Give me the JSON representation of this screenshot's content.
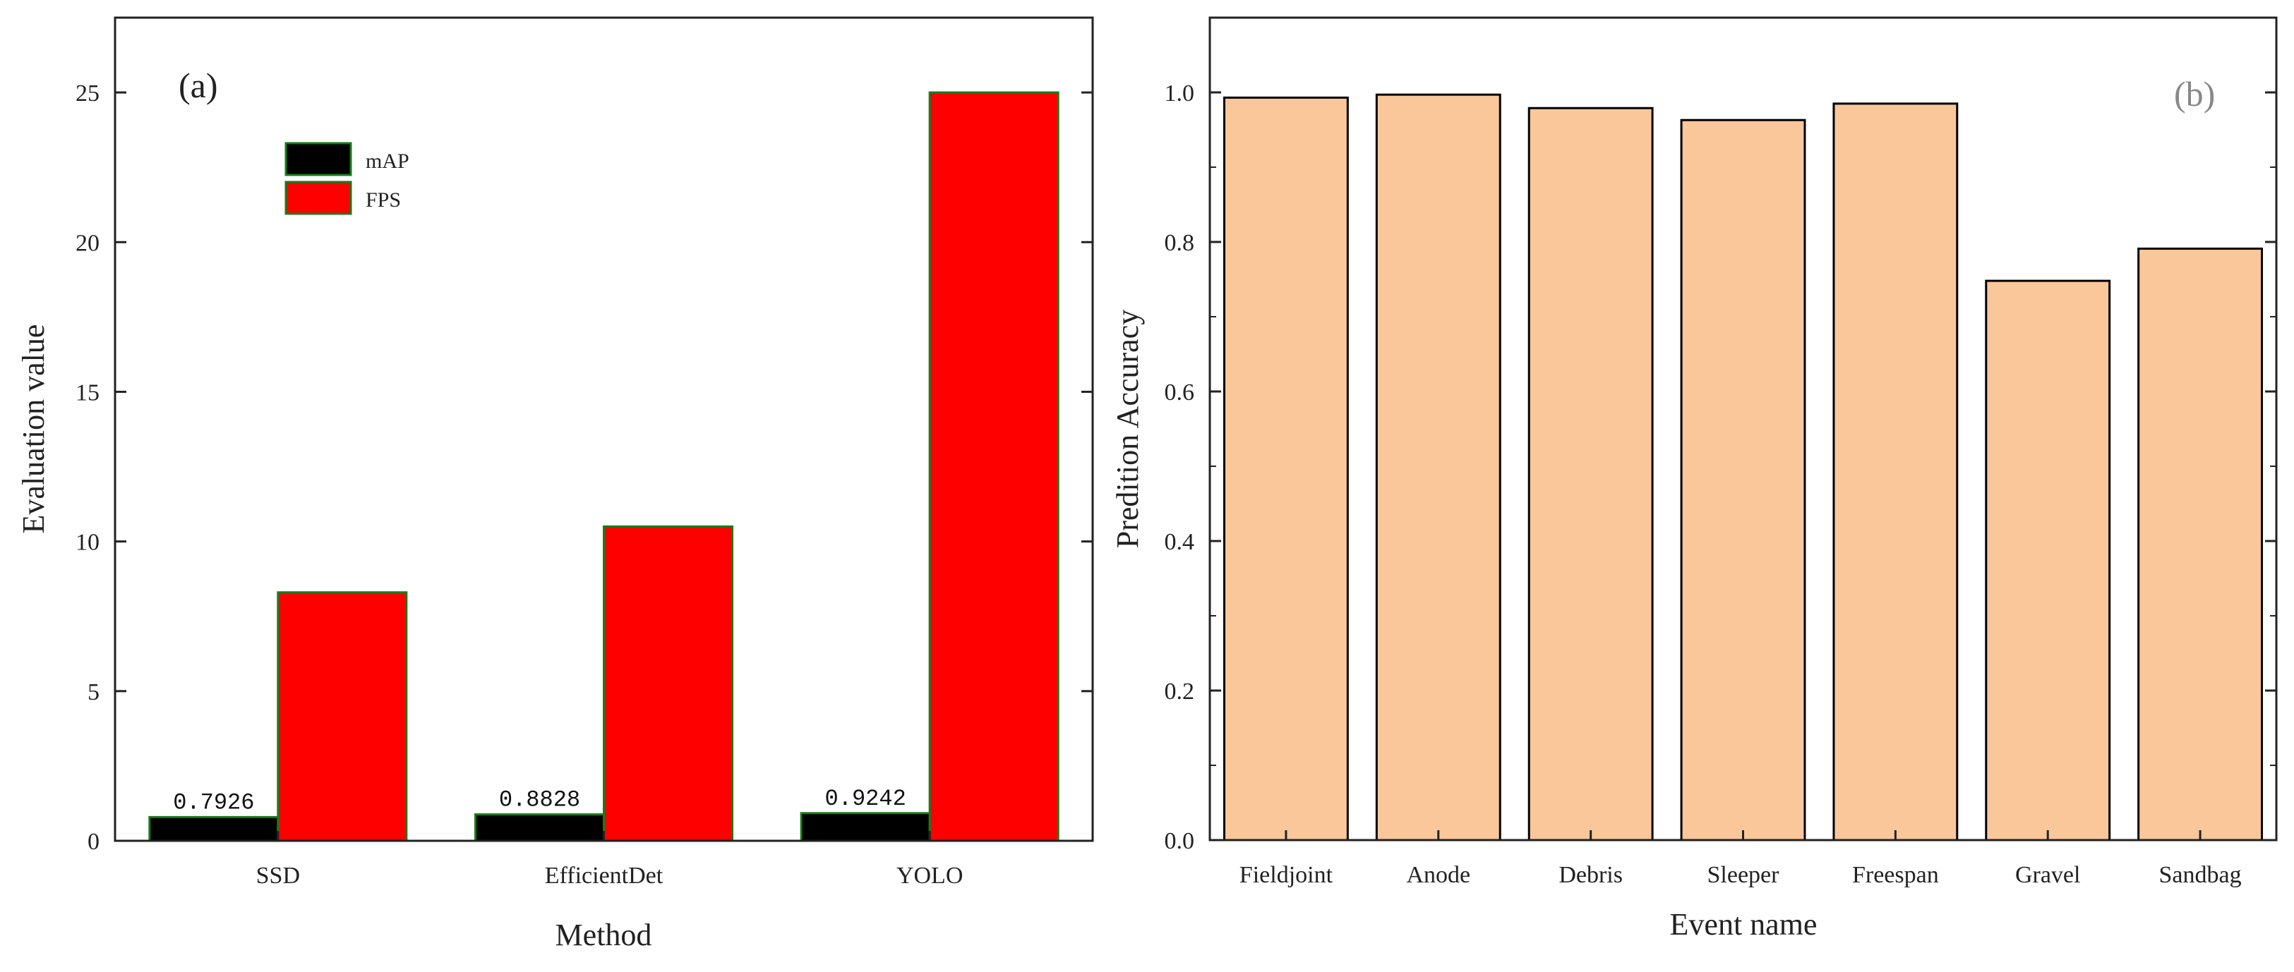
{
  "chart_data": [
    {
      "type": "bar",
      "panel_tag": "(a)",
      "categories": [
        "SSD",
        "EfficientDet",
        "YOLO"
      ],
      "series": [
        {
          "name": "mAP",
          "values": [
            0.7926,
            0.8828,
            0.9242
          ],
          "color": "#000000",
          "labels": [
            "0.7926",
            "0.8828",
            "0.9242"
          ]
        },
        {
          "name": "FPS",
          "values": [
            8.3,
            10.5,
            25
          ],
          "color": "#ff0000"
        }
      ],
      "bar_edge_color": "#1a7a1a",
      "xlabel": "Method",
      "ylabel": "Evaluation value",
      "ylim": [
        0,
        27.5
      ],
      "yticks": [
        0,
        5,
        10,
        15,
        20,
        25
      ],
      "ytick_labels": [
        "0",
        "5",
        "10",
        "15",
        "20",
        "25"
      ],
      "legend_position": "upper-left",
      "grid": false
    },
    {
      "type": "bar",
      "panel_tag": "(b)",
      "categories": [
        "Fieldjoint",
        "Anode",
        "Debris",
        "Sleeper",
        "Freespan",
        "Gravel",
        "Sandbag"
      ],
      "values": [
        0.993,
        0.997,
        0.979,
        0.963,
        0.985,
        0.748,
        0.791
      ],
      "color": "#f9c79a",
      "bar_edge_color": "#000000",
      "xlabel": "Event name",
      "ylabel": "Predition Accuracy",
      "ylim": [
        0,
        1.1
      ],
      "yticks": [
        0,
        0.2,
        0.4,
        0.6,
        0.8,
        1.0
      ],
      "ytick_labels": [
        "0.0",
        "0.2",
        "0.4",
        "0.6",
        "0.8",
        "1.0"
      ],
      "grid": false
    }
  ]
}
